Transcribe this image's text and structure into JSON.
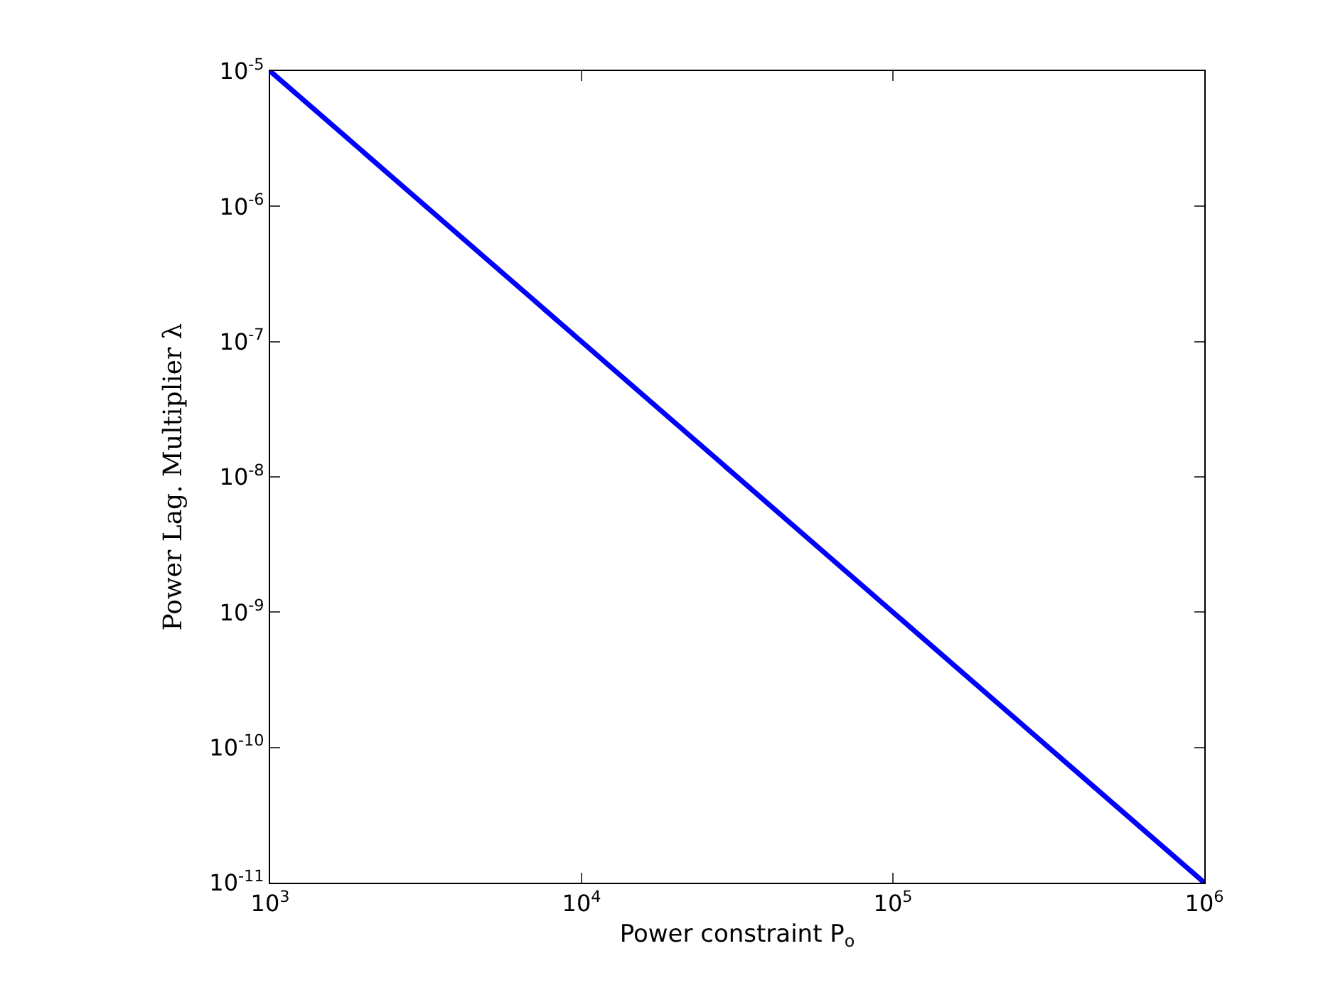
{
  "chart_data": {
    "type": "line",
    "xlabel": "Power constraint P$_{o}$",
    "ylabel": "Power Lag. Multiplier λ",
    "log": "xy",
    "x": [
      1000,
      10000,
      100000,
      1000000
    ],
    "series": [
      {
        "color": "#0000ff",
        "values": [
          1e-05,
          1e-07,
          1e-09,
          1e-11
        ]
      }
    ],
    "xlim": [
      1000,
      1000000
    ],
    "ylim": [
      1e-11,
      1e-05
    ],
    "xticks": [
      {
        "value": 1000,
        "label": "10$^{3}$"
      },
      {
        "value": 10000,
        "label": "10$^{4}$"
      },
      {
        "value": 100000,
        "label": "10$^{5}$"
      },
      {
        "value": 1000000,
        "label": "10$^{6}$"
      }
    ],
    "yticks": [
      {
        "value": 1e-11,
        "label": "10$^{-11}$"
      },
      {
        "value": 1e-10,
        "label": "10$^{-10}$"
      },
      {
        "value": 1e-09,
        "label": "10$^{-9}$"
      },
      {
        "value": 1e-08,
        "label": "10$^{-8}$"
      },
      {
        "value": 1e-07,
        "label": "10$^{-7}$"
      },
      {
        "value": 1e-06,
        "label": "10$^{-6}$"
      },
      {
        "value": 1e-05,
        "label": "10$^{-5}$"
      }
    ],
    "marker": "none",
    "line_style": "solid"
  }
}
